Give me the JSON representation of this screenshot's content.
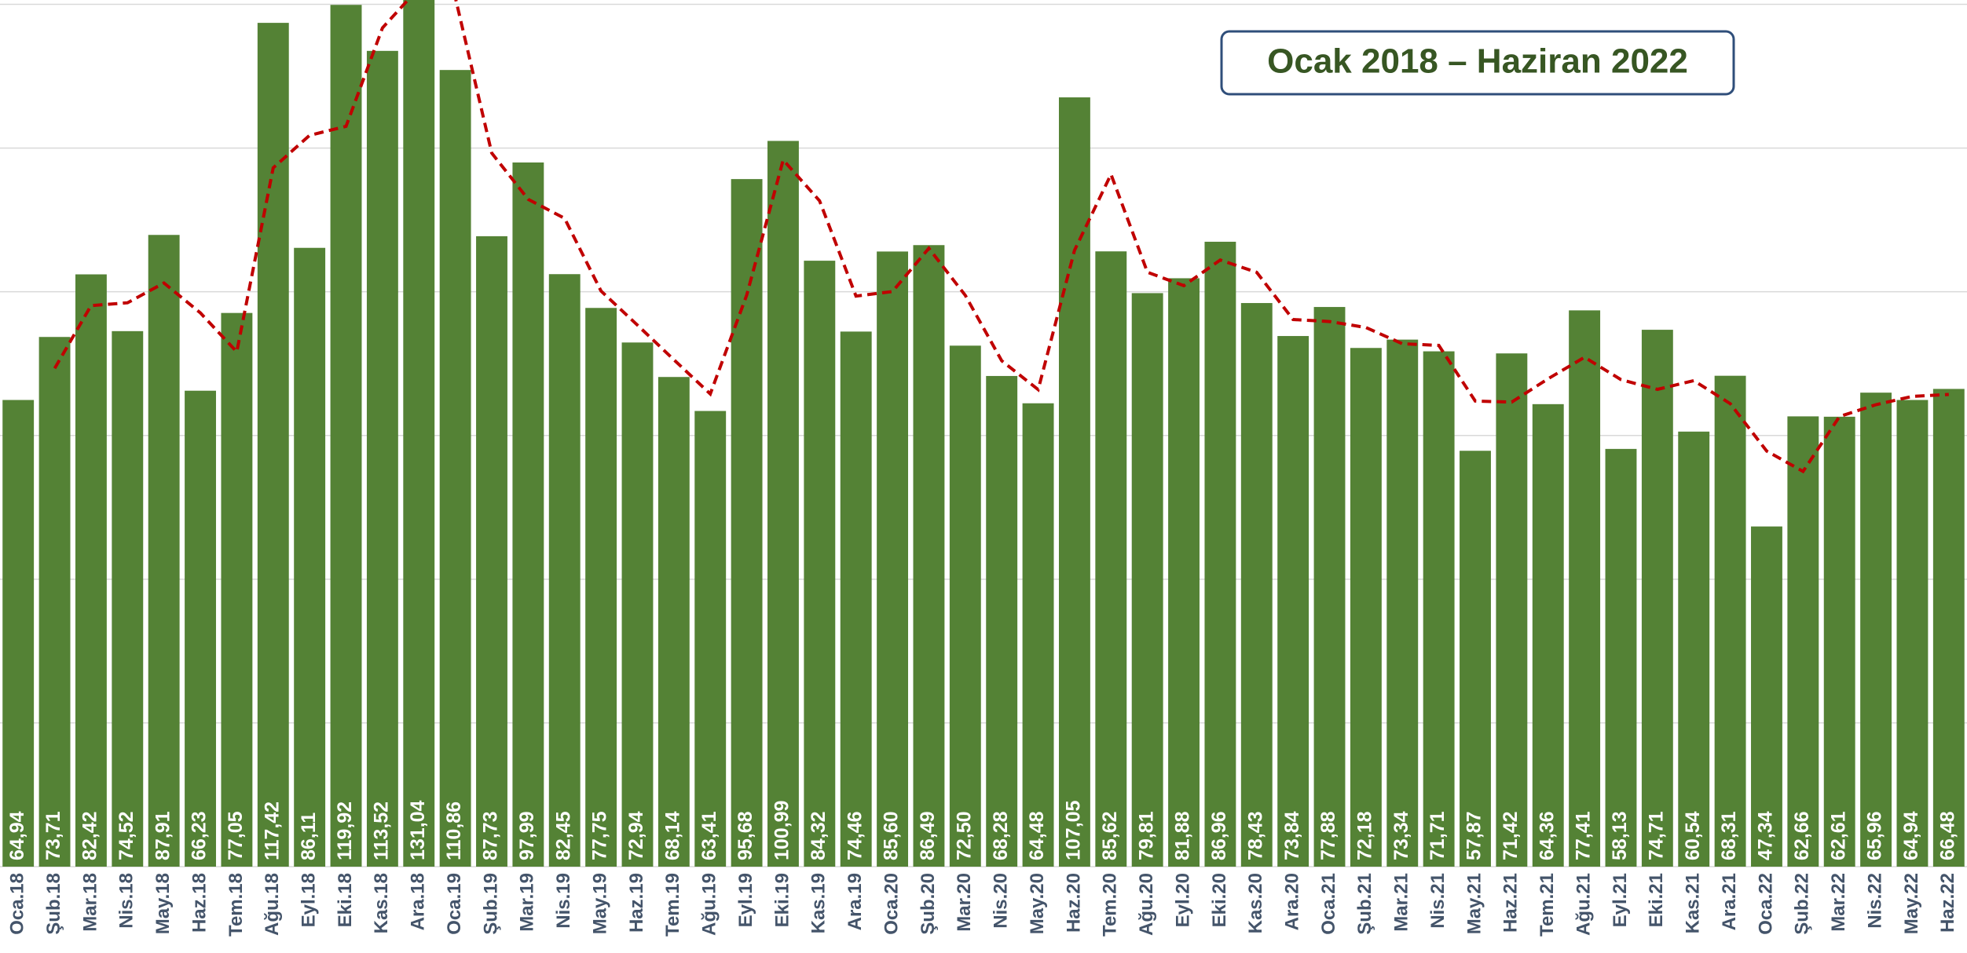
{
  "chart_data": {
    "type": "bar",
    "title": "Ocak 2018 – Haziran 2022",
    "categories": [
      "Oca.18",
      "Şub.18",
      "Mar.18",
      "Nis.18",
      "May.18",
      "Haz.18",
      "Tem.18",
      "Ağu.18",
      "Eyl.18",
      "Eki.18",
      "Kas.18",
      "Ara.18",
      "Oca.19",
      "Şub.19",
      "Mar.19",
      "Nis.19",
      "May.19",
      "Haz.19",
      "Tem.19",
      "Ağu.19",
      "Eyl.19",
      "Eki.19",
      "Kas.19",
      "Ara.19",
      "Oca.20",
      "Şub.20",
      "Mar.20",
      "Nis.20",
      "May.20",
      "Haz.20",
      "Tem.20",
      "Ağu.20",
      "Eyl.20",
      "Eki.20",
      "Kas.20",
      "Ara.20",
      "Oca.21",
      "Şub.21",
      "Mar.21",
      "Nis.21",
      "May.21",
      "Haz.21",
      "Tem.21",
      "Ağu.21",
      "Eyl.21",
      "Eki.21",
      "Kas.21",
      "Ara.21",
      "Oca.22",
      "Şub.22",
      "Mar.22",
      "Nis.22",
      "May.22",
      "Haz.22"
    ],
    "series": [
      {
        "kind": "bar",
        "color": "#548235",
        "values": [
          64.94,
          73.71,
          82.42,
          74.52,
          87.91,
          66.23,
          77.05,
          117.42,
          86.11,
          119.92,
          113.52,
          131.04,
          110.86,
          87.73,
          97.99,
          82.45,
          77.75,
          72.94,
          68.14,
          63.41,
          95.68,
          100.99,
          84.32,
          74.46,
          85.6,
          86.49,
          72.5,
          68.28,
          64.48,
          107.05,
          85.62,
          79.81,
          81.88,
          86.96,
          78.43,
          73.84,
          77.88,
          72.18,
          73.34,
          71.71,
          57.87,
          71.42,
          64.36,
          77.41,
          58.13,
          74.71,
          60.54,
          68.31,
          47.34,
          62.66,
          62.61,
          65.96,
          64.94,
          66.48
        ],
        "value_labels": [
          "64,94",
          "73,71",
          "82,42",
          "74,52",
          "87,91",
          "66,23",
          "77,05",
          "117,42",
          "86,11",
          "119,92",
          "113,52",
          "131,04",
          "110,86",
          "87,73",
          "97,99",
          "82,45",
          "77,75",
          "72,94",
          "68,14",
          "63,41",
          "95,68",
          "100,99",
          "84,32",
          "74,46",
          "85,60",
          "86,49",
          "72,50",
          "68,28",
          "64,48",
          "107,05",
          "85,62",
          "79,81",
          "81,88",
          "86,96",
          "78,43",
          "73,84",
          "77,88",
          "72,18",
          "73,34",
          "71,71",
          "57,87",
          "71,42",
          "64,36",
          "77,41",
          "58,13",
          "74,71",
          "60,54",
          "68,31",
          "47,34",
          "62,66",
          "62,61",
          "65,96",
          "64,94",
          "66,48"
        ]
      },
      {
        "kind": "line",
        "dashed": true,
        "color": "#c00000",
        "values": [
          null,
          69.33,
          78.07,
          78.47,
          81.22,
          77.07,
          71.64,
          97.24,
          101.77,
          103.02,
          116.72,
          122.28,
          120.95,
          99.3,
          92.86,
          90.22,
          80.1,
          75.35,
          70.54,
          65.78,
          79.55,
          98.34,
          92.66,
          79.39,
          80.03,
          86.05,
          79.5,
          70.39,
          66.38,
          85.77,
          96.34,
          82.72,
          80.85,
          84.42,
          82.7,
          76.14,
          75.86,
          75.03,
          72.76,
          72.53,
          64.79,
          64.65,
          67.89,
          70.89,
          67.77,
          66.42,
          67.63,
          64.43,
          57.83,
          55.0,
          62.64,
          64.29,
          65.45,
          65.71
        ]
      }
    ],
    "ylim": [
      0,
      120.6
    ],
    "yticks": [
      0,
      20,
      40,
      60,
      80,
      100,
      120
    ],
    "grid": true
  }
}
